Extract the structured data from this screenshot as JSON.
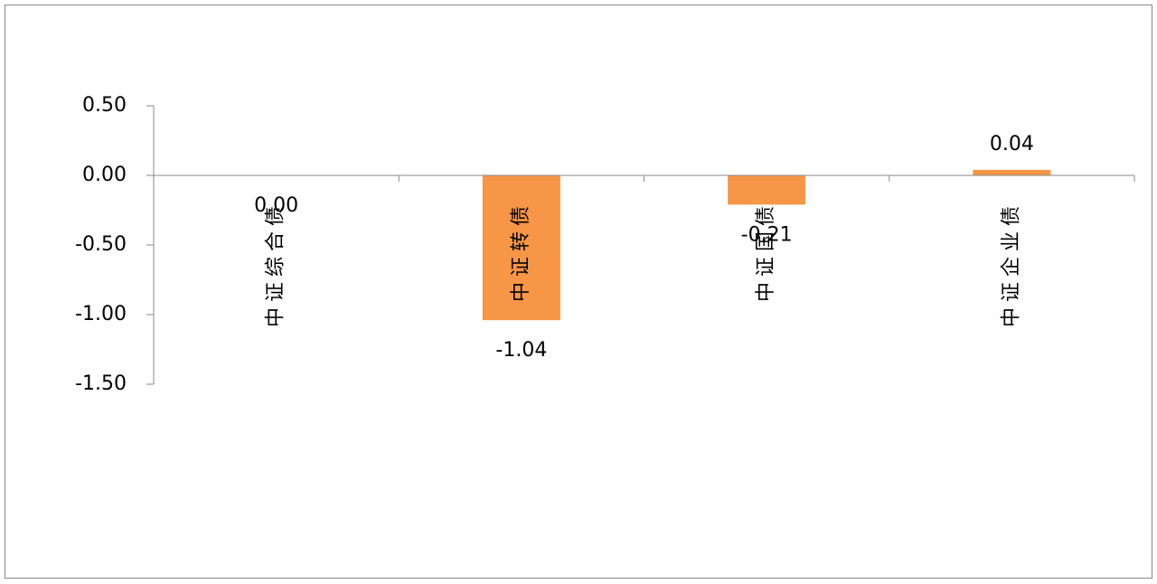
{
  "chart_data": {
    "type": "bar",
    "categories": [
      "中证综合债",
      "中证转债",
      "中证国债",
      "中证企业债"
    ],
    "values": [
      0,
      -1.04,
      -0.21,
      0.04
    ],
    "value_labels": [
      "0.00",
      "-1.04",
      "-0.21",
      "0.04"
    ],
    "color": "#f79646",
    "ylim": [
      -1.5,
      0.5
    ],
    "yticks": [
      {
        "value": 0.5,
        "label": "0.50"
      },
      {
        "value": 0,
        "label": "0.00"
      },
      {
        "value": -0.5,
        "label": "-0.50"
      },
      {
        "value": -1,
        "label": "-1.00"
      },
      {
        "value": -1.5,
        "label": "-1.50"
      }
    ],
    "grid": false
  }
}
